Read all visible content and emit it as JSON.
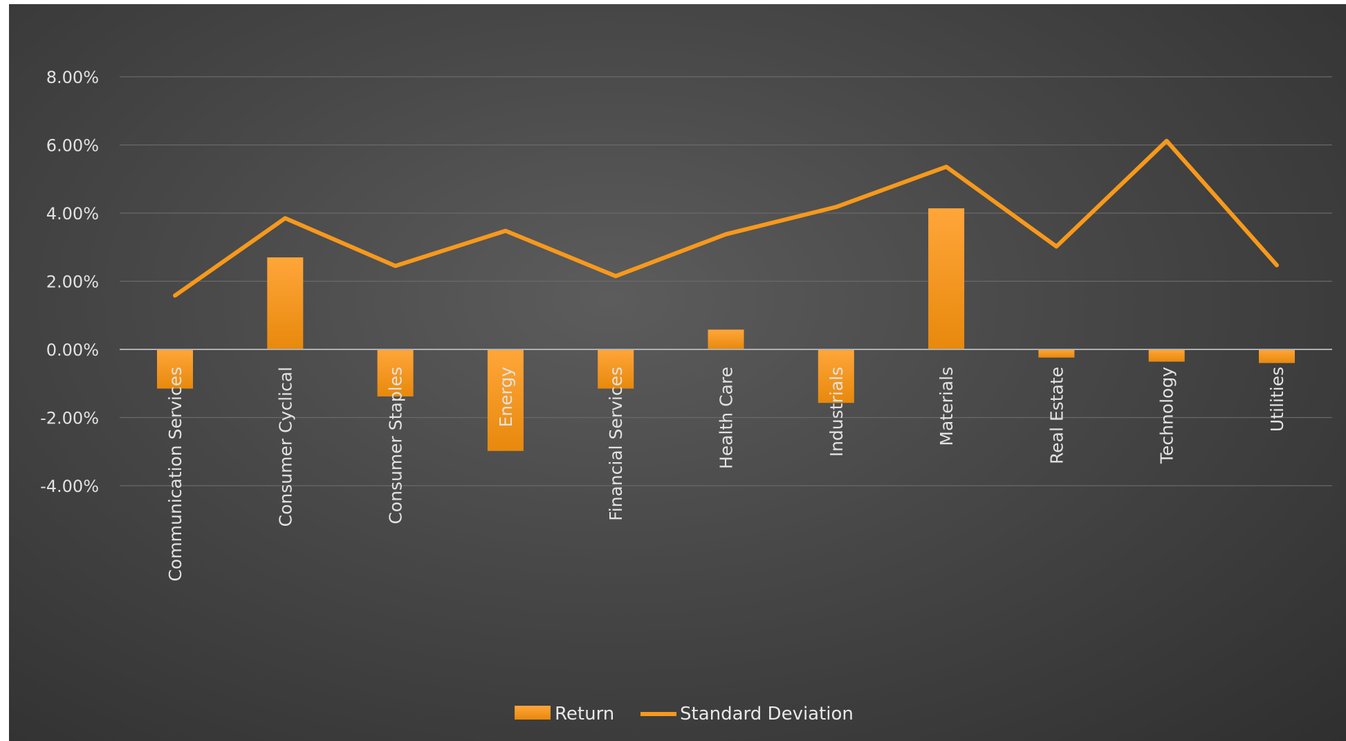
{
  "chart_data": {
    "type": "bar",
    "title": "",
    "xlabel": "",
    "ylabel": "",
    "categories": [
      "Communication Services",
      "Consumer Cyclical",
      "Consumer Staples",
      "Energy",
      "Financial Services",
      "Health Care",
      "Industrials",
      "Materials",
      "Real Estate",
      "Technology",
      "Utilities"
    ],
    "series": [
      {
        "name": "Return",
        "type": "bar",
        "values": [
          -1.15,
          2.7,
          -1.38,
          -2.98,
          -1.15,
          0.58,
          -1.57,
          4.14,
          -0.24,
          -0.36,
          -0.4
        ]
      },
      {
        "name": "Standard Deviation",
        "type": "line",
        "values": [
          1.58,
          3.85,
          2.45,
          3.48,
          2.15,
          3.38,
          4.18,
          5.36,
          3.02,
          6.12,
          2.47
        ]
      }
    ],
    "ylim": [
      -4,
      8
    ],
    "yticks": [
      "8.00%",
      "6.00%",
      "4.00%",
      "2.00%",
      "0.00%",
      "-2.00%",
      "-4.00%"
    ],
    "grid": true,
    "legend_position": "bottom",
    "colors": {
      "accent": "#f7991c",
      "bar_top": "#ffa63a",
      "bar_bottom": "#e8890c",
      "grid": "#6a6a6a",
      "zero_line": "#b0b0b0"
    }
  }
}
